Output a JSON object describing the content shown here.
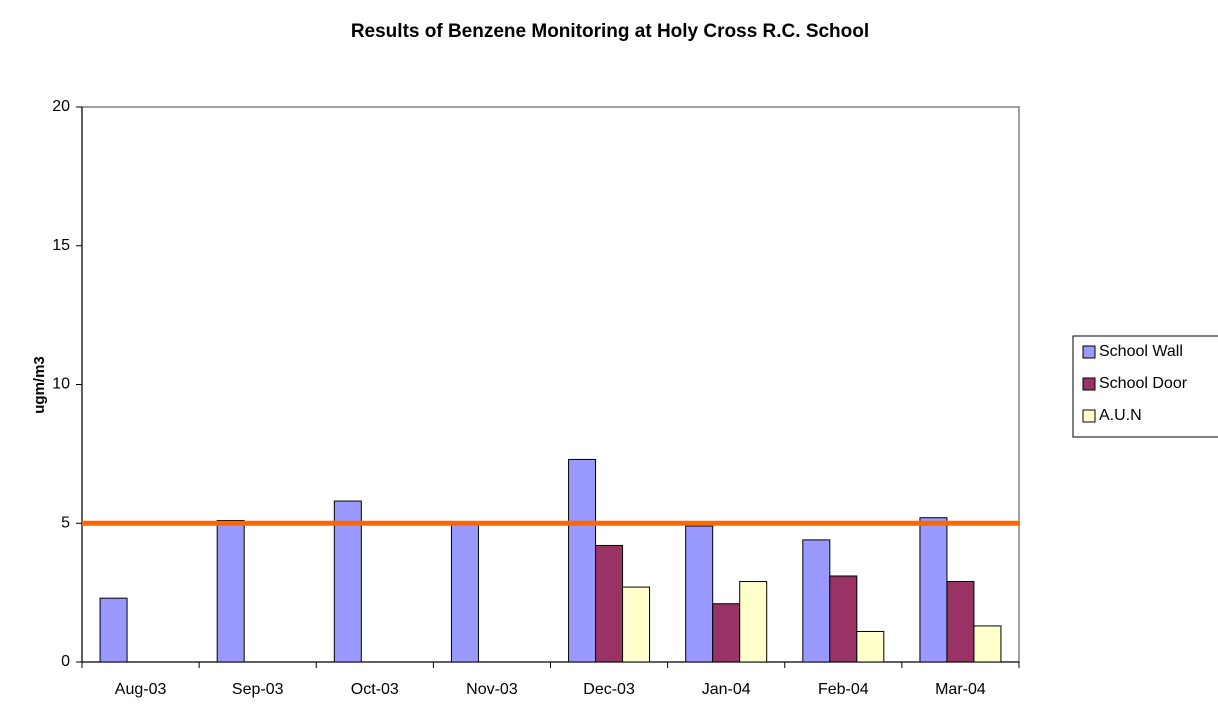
{
  "chart_data": {
    "type": "bar",
    "title": "Results of Benzene Monitoring at Holy Cross R.C. School",
    "y_label": "ugm/m3",
    "categories": [
      "Aug-03",
      "Sep-03",
      "Oct-03",
      "Nov-03",
      "Dec-03",
      "Jan-04",
      "Feb-04",
      "Mar-04"
    ],
    "series": [
      {
        "name": "School Wall",
        "color": "#9999ff",
        "values": [
          2.3,
          5.1,
          5.8,
          5.0,
          7.3,
          4.9,
          4.4,
          5.2
        ]
      },
      {
        "name": "School Door",
        "color": "#993366",
        "values": [
          null,
          null,
          null,
          null,
          4.2,
          2.1,
          3.1,
          2.9
        ]
      },
      {
        "name": "A.U.N",
        "color": "#ffffcc",
        "values": [
          null,
          null,
          null,
          null,
          2.7,
          2.9,
          1.1,
          1.3
        ]
      }
    ],
    "reference_line": {
      "value": 5,
      "color": "#ff6600"
    },
    "ylim": [
      0,
      20
    ],
    "yticks": [
      0,
      5,
      10,
      15,
      20
    ],
    "grid": false,
    "legend": "right"
  }
}
